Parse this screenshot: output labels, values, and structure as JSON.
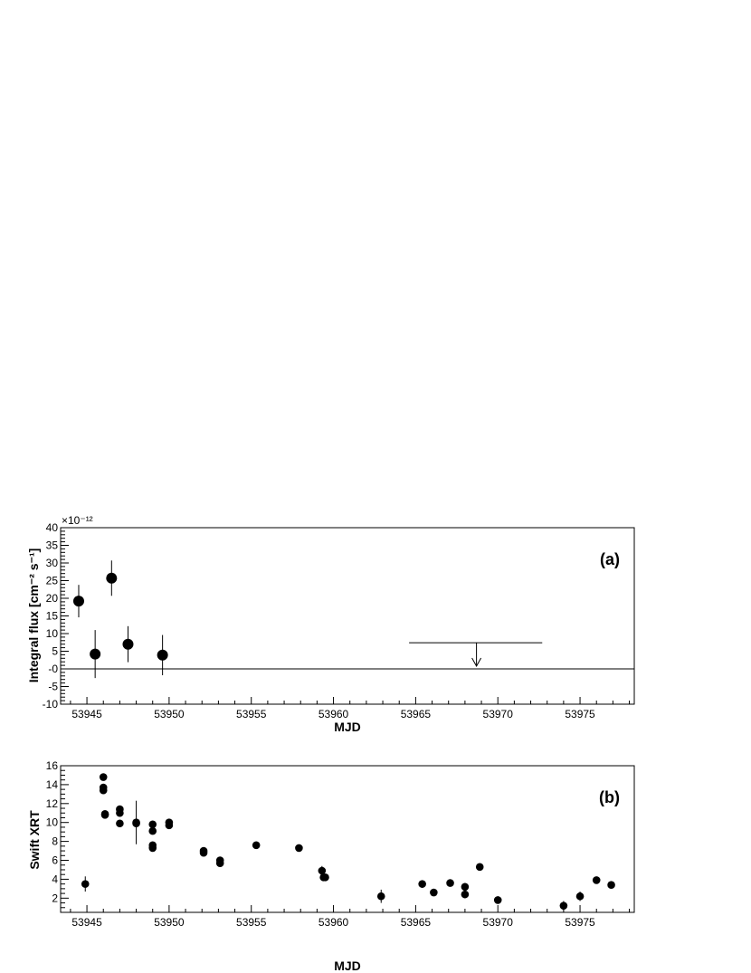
{
  "chart_data": [
    {
      "type": "scatter",
      "panel_label": "(a)",
      "xlabel": "MJD",
      "ylabel": "Integral flux [cm⁻² s⁻¹]",
      "exponent_label": "×10⁻¹²",
      "xlim": [
        53943.4,
        53978.3
      ],
      "ylim": [
        -10,
        40
      ],
      "xticks": [
        53945,
        53950,
        53955,
        53960,
        53965,
        53970,
        53975
      ],
      "yticks": [
        -10,
        -5,
        0,
        5,
        10,
        15,
        20,
        25,
        30,
        35,
        40
      ],
      "ytick_labels": [
        "-10",
        "-5",
        "-0",
        "5",
        "10",
        "15",
        "20",
        "25",
        "30",
        "35",
        "40"
      ],
      "zero_line": true,
      "series": [
        {
          "points": [
            {
              "x": 53944.5,
              "y": 19.2,
              "err": 4.6
            },
            {
              "x": 53945.5,
              "y": 4.2,
              "err": 6.8
            },
            {
              "x": 53946.5,
              "y": 25.7,
              "err": 5.0
            },
            {
              "x": 53947.5,
              "y": 7.0,
              "err": 5.1
            },
            {
              "x": 53949.6,
              "y": 3.9,
              "err": 5.7
            }
          ]
        }
      ],
      "upper_limit": {
        "x_from": 53964.6,
        "x_to": 53972.7,
        "x_arrow": 53968.7,
        "y": 7.4
      }
    },
    {
      "type": "scatter",
      "panel_label": "(b)",
      "xlabel": "MJD",
      "ylabel": "Swift XRT",
      "xlim": [
        53943.4,
        53978.3
      ],
      "ylim": [
        0.5,
        16
      ],
      "xticks": [
        53945,
        53950,
        53955,
        53960,
        53965,
        53970,
        53975
      ],
      "yticks": [
        2,
        4,
        6,
        8,
        10,
        12,
        14,
        16
      ],
      "series": [
        {
          "points": [
            {
              "x": 53944.9,
              "y": 3.5,
              "err": 0.8
            },
            {
              "x": 53946.0,
              "y": 14.8,
              "err": 0.2
            },
            {
              "x": 53946.0,
              "y": 13.7,
              "err": 0.2
            },
            {
              "x": 53946.0,
              "y": 13.4,
              "err": 0.2
            },
            {
              "x": 53946.1,
              "y": 10.9,
              "err": 0.2
            },
            {
              "x": 53946.1,
              "y": 10.8,
              "err": 0.2
            },
            {
              "x": 53947.0,
              "y": 11.4,
              "err": 0.2
            },
            {
              "x": 53947.0,
              "y": 11.0,
              "err": 0.2
            },
            {
              "x": 53947.0,
              "y": 9.9,
              "err": 0.2
            },
            {
              "x": 53948.0,
              "y": 10.0,
              "err": 2.3
            },
            {
              "x": 53948.0,
              "y": 9.9,
              "err": 0.2
            },
            {
              "x": 53949.0,
              "y": 9.8,
              "err": 0.2
            },
            {
              "x": 53949.0,
              "y": 9.1,
              "err": 0.2
            },
            {
              "x": 53949.0,
              "y": 7.6,
              "err": 0.2
            },
            {
              "x": 53949.0,
              "y": 7.3,
              "err": 0.2
            },
            {
              "x": 53950.0,
              "y": 10.0,
              "err": 0.2
            },
            {
              "x": 53950.0,
              "y": 9.7,
              "err": 0.2
            },
            {
              "x": 53952.1,
              "y": 7.0,
              "err": 0.2
            },
            {
              "x": 53952.1,
              "y": 6.8,
              "err": 0.2
            },
            {
              "x": 53953.1,
              "y": 6.0,
              "err": 0.2
            },
            {
              "x": 53953.1,
              "y": 5.7,
              "err": 0.2
            },
            {
              "x": 53955.3,
              "y": 7.6,
              "err": 0.2
            },
            {
              "x": 53957.9,
              "y": 7.3,
              "err": 0.2
            },
            {
              "x": 53959.3,
              "y": 4.9,
              "err": 0.5
            },
            {
              "x": 53959.4,
              "y": 4.2,
              "err": 0.3
            },
            {
              "x": 53959.5,
              "y": 4.2,
              "err": 0.2
            },
            {
              "x": 53962.9,
              "y": 2.2,
              "err": 0.7
            },
            {
              "x": 53965.4,
              "y": 3.5,
              "err": 0.4
            },
            {
              "x": 53966.1,
              "y": 2.6,
              "err": 0.2
            },
            {
              "x": 53967.1,
              "y": 3.6,
              "err": 0.2
            },
            {
              "x": 53968.0,
              "y": 3.2,
              "err": 0.4
            },
            {
              "x": 53968.0,
              "y": 2.4,
              "err": 0.4
            },
            {
              "x": 53968.9,
              "y": 5.3,
              "err": 0.2
            },
            {
              "x": 53970.0,
              "y": 1.8,
              "err": 0.4
            },
            {
              "x": 53974.0,
              "y": 1.2,
              "err": 0.5
            },
            {
              "x": 53975.0,
              "y": 2.2,
              "err": 0.5
            },
            {
              "x": 53976.0,
              "y": 3.9,
              "err": 0.2
            },
            {
              "x": 53976.9,
              "y": 3.4,
              "err": 0.2
            }
          ]
        }
      ]
    }
  ]
}
